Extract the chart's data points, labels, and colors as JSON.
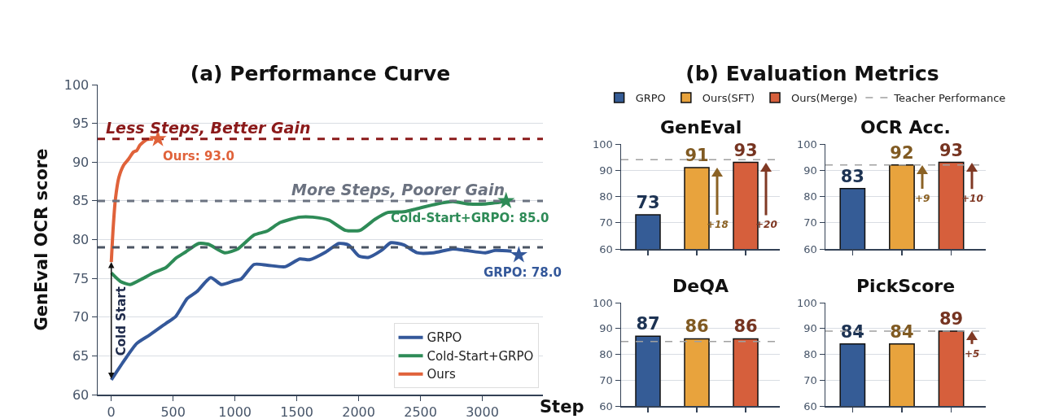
{
  "chart_data": [
    {
      "type": "line",
      "title": "(a) Performance Curve",
      "xlabel": "Step",
      "ylabel": "GenEval OCR score",
      "series": [
        {
          "name": "GRPO",
          "color": "#34589a",
          "x": [
            0,
            100,
            206,
            311,
            443,
            522,
            614,
            693,
            804,
            891,
            996,
            1049,
            1155,
            1260,
            1405,
            1524,
            1603,
            1735,
            1840,
            1919,
            2000,
            2077,
            2183,
            2261,
            2367,
            2472,
            2604,
            2762,
            2868,
            3026,
            3105,
            3237
          ],
          "values": [
            61.9,
            64.3,
            66.6,
            67.7,
            69.2,
            70.1,
            72.4,
            73.3,
            75.1,
            74.2,
            74.7,
            74.9,
            76.8,
            76.7,
            76.5,
            77.5,
            77.4,
            78.4,
            79.5,
            79.3,
            77.9,
            77.7,
            78.6,
            79.6,
            79.3,
            78.3,
            78.3,
            78.8,
            78.6,
            78.3,
            78.6,
            78.5
          ]
        },
        {
          "name": "Cold-Start+GRPO",
          "color": "#2e8b57",
          "x": [
            0,
            74,
            153,
            258,
            338,
            443,
            522,
            601,
            707,
            786,
            917,
            1023,
            1155,
            1260,
            1365,
            1524,
            1629,
            1761,
            1893,
            2011,
            2130,
            2236,
            2367,
            2499,
            2631,
            2762,
            2894,
            3026,
            3184
          ],
          "values": [
            75.7,
            74.6,
            74.2,
            75,
            75.7,
            76.4,
            77.6,
            78.4,
            79.5,
            79.4,
            78.3,
            78.8,
            80.6,
            81.1,
            82.2,
            82.9,
            82.9,
            82.5,
            81.2,
            81.2,
            82.6,
            83.5,
            83.6,
            84.1,
            84.6,
            84.9,
            84.6,
            84.6,
            84.9
          ]
        },
        {
          "name": "Ours",
          "color": "#e0623a",
          "x": [
            0,
            16,
            34,
            61,
            100,
            140,
            179,
            206,
            232,
            285,
            338
          ],
          "values": [
            77.1,
            81.7,
            85.3,
            88,
            89.6,
            90.4,
            91.3,
            91.5,
            92.2,
            92.9,
            93
          ]
        }
      ],
      "xlim": [
        -110,
        3490
      ],
      "xticks": [
        0,
        500,
        1000,
        1500,
        2000,
        2500,
        3000
      ],
      "ylim": [
        60,
        100
      ],
      "yticks": [
        60,
        65,
        70,
        75,
        80,
        85,
        90,
        95,
        100
      ],
      "grid": "y",
      "legend": "bottom right",
      "marker": "none",
      "line_style": "solid",
      "ref_lines": [
        {
          "axis": "y",
          "value": 93,
          "label": "Less Steps, Better Gain",
          "color": "#8b1a1a",
          "line_style": "dashed"
        },
        {
          "axis": "y",
          "value": 85,
          "label": "More Steps, Poorer Gain",
          "color": "#6b7280",
          "line_style": "dashed"
        },
        {
          "axis": "y",
          "value": 79,
          "color": "#4b5563",
          "line_style": "dashed"
        }
      ],
      "annotations": [
        {
          "text": "GRPO: 78.0",
          "x": 3295,
          "y": 78
        },
        {
          "text": "Cold-Start+GRPO: 85.0",
          "x": 3192,
          "y": 85
        },
        {
          "text": "Ours: 93.0",
          "x": 377,
          "y": 93
        },
        "Cold Start"
      ]
    },
    {
      "type": "bar",
      "title": "(b) Evaluation Metrics",
      "subtitle": "GenEval",
      "categories": [
        null,
        null,
        null
      ],
      "series": [
        {
          "name": "GRPO",
          "color": "#355c96",
          "values": [
            73,
            null,
            null
          ]
        },
        {
          "name": "Ours(SFT)",
          "color": "#e8a33d",
          "values": [
            null,
            91,
            null
          ]
        },
        {
          "name": "Ours(Merge)",
          "color": "#d65f3c",
          "values": [
            null,
            null,
            93
          ]
        }
      ],
      "ylim": [
        60,
        100
      ],
      "yticks": [
        60,
        70,
        80,
        90,
        100
      ],
      "grid": "y",
      "legend": "top",
      "data_labels": true,
      "ref_lines": [
        {
          "axis": "y",
          "value": 94,
          "label": "Teacher Performance",
          "color": "#a0a0a0",
          "line_style": "dashed"
        }
      ],
      "annotations": [
        "+18",
        "+20"
      ]
    },
    {
      "type": "bar",
      "title": "OCR Acc.",
      "categories": [
        null,
        null,
        null
      ],
      "series": [
        {
          "color": "#355c96",
          "values": [
            83,
            null,
            null
          ]
        },
        {
          "color": "#e8a33d",
          "values": [
            null,
            92,
            null
          ]
        },
        {
          "color": "#d65f3c",
          "values": [
            null,
            null,
            93
          ]
        }
      ],
      "ylim": [
        60,
        100
      ],
      "yticks": [
        60,
        70,
        80,
        90,
        100
      ],
      "grid": "y",
      "data_labels": true,
      "ref_lines": [
        {
          "axis": "y",
          "value": 92,
          "color": "#a0a0a0",
          "line_style": "dashed"
        }
      ],
      "annotations": [
        "+9",
        "+10"
      ]
    },
    {
      "type": "bar",
      "title": "DeQA",
      "categories": [
        null,
        null,
        null
      ],
      "series": [
        {
          "color": "#355c96",
          "values": [
            87,
            null,
            null
          ]
        },
        {
          "color": "#e8a33d",
          "values": [
            null,
            86,
            null
          ]
        },
        {
          "color": "#d65f3c",
          "values": [
            null,
            null,
            86
          ]
        }
      ],
      "ylim": [
        60,
        100
      ],
      "yticks": [
        60,
        70,
        80,
        90,
        100
      ],
      "grid": "y",
      "data_labels": true,
      "ref_lines": [
        {
          "axis": "y",
          "value": 85,
          "color": "#a0a0a0",
          "line_style": "dashed"
        }
      ]
    },
    {
      "type": "bar",
      "title": "PickScore",
      "categories": [
        null,
        null,
        null
      ],
      "series": [
        {
          "color": "#355c96",
          "values": [
            84,
            null,
            null
          ]
        },
        {
          "color": "#e8a33d",
          "values": [
            null,
            84,
            null
          ]
        },
        {
          "color": "#d65f3c",
          "values": [
            null,
            null,
            89
          ]
        }
      ],
      "ylim": [
        60,
        100
      ],
      "yticks": [
        60,
        70,
        80,
        90,
        100
      ],
      "grid": "y",
      "data_labels": true,
      "ref_lines": [
        {
          "axis": "y",
          "value": 89,
          "color": "#a0a0a0",
          "line_style": "dashed"
        }
      ],
      "annotations": [
        "+5"
      ]
    }
  ]
}
